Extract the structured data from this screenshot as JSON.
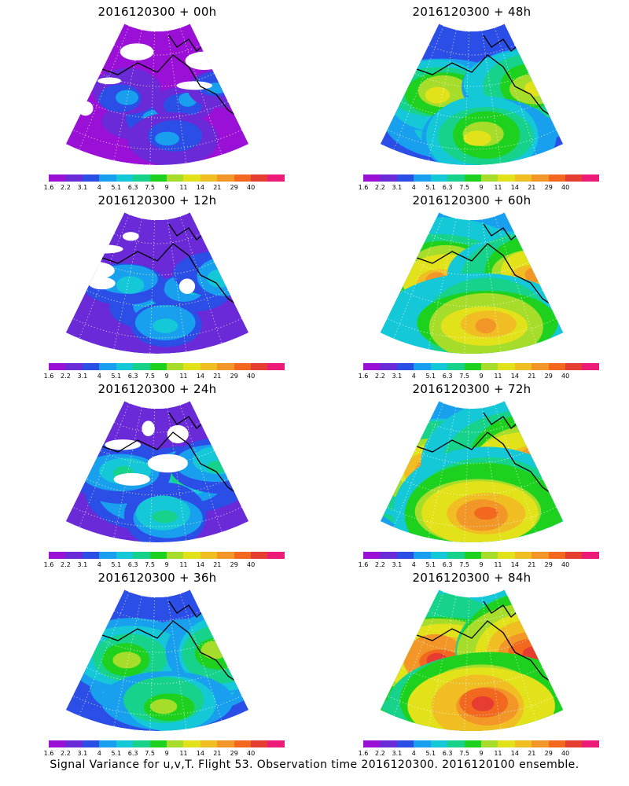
{
  "panels": [
    {
      "title": "2016120300 + 00h",
      "level": 0.05
    },
    {
      "title": "2016120300 + 48h",
      "level": 0.55
    },
    {
      "title": "2016120300 + 12h",
      "level": 0.15
    },
    {
      "title": "2016120300 + 60h",
      "level": 0.7
    },
    {
      "title": "2016120300 + 24h",
      "level": 0.28
    },
    {
      "title": "2016120300 + 72h",
      "level": 0.82
    },
    {
      "title": "2016120300 + 36h",
      "level": 0.42
    },
    {
      "title": "2016120300 + 84h",
      "level": 0.92
    }
  ],
  "colorbar": {
    "colors": [
      "#9a10d6",
      "#6a2ad8",
      "#2a4ee6",
      "#18a0ee",
      "#14c8d8",
      "#16d28a",
      "#1ed11e",
      "#a6dc2a",
      "#e2e21a",
      "#f0be22",
      "#f39628",
      "#f1681e",
      "#e63c32",
      "#ee1a78"
    ],
    "ticks": [
      "1.6",
      "2.2",
      "3.1",
      "4",
      "5.1",
      "6.3",
      "7.5",
      "9",
      "11",
      "14",
      "21",
      "29",
      "40"
    ]
  },
  "caption": "Signal Variance for u,v,T. Flight 53. Observation time 2016120300. 2016120100 ensemble."
}
